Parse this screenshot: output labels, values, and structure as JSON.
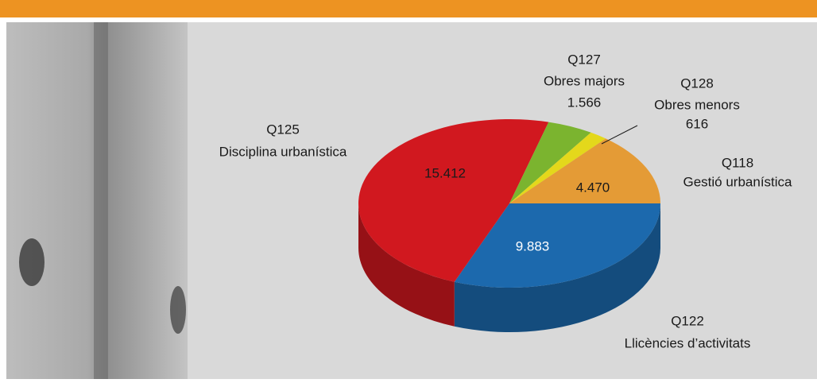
{
  "chart_data": {
    "type": "pie3d",
    "codes": [
      "Q122",
      "Q125",
      "Q127",
      "Q128",
      "Q118"
    ],
    "categories": [
      "Llicències d’activitats",
      "Disciplina urbanística",
      "Obres majors",
      "Obres menors",
      "Gestió urbanística"
    ],
    "values": [
      9883,
      15412,
      1566,
      616,
      4470
    ],
    "value_labels": [
      "9.883",
      "15.412",
      "1.566",
      "616",
      "4.470"
    ],
    "colors": [
      "#1c69ad",
      "#d1181f",
      "#7bb42f",
      "#e4d81b",
      "#e49b36"
    ]
  }
}
